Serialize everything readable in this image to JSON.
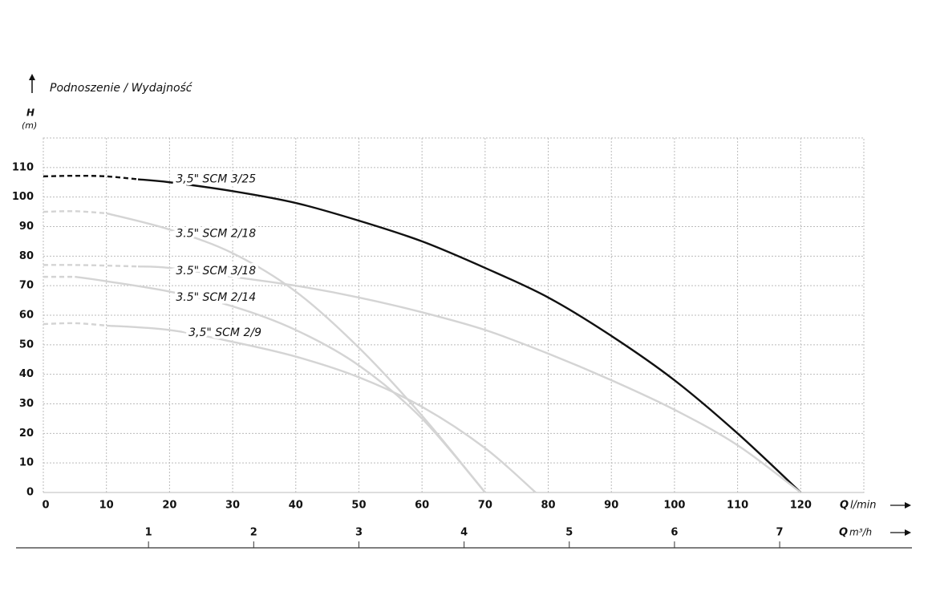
{
  "chart_data": {
    "type": "line",
    "title": "Podnoszenie / Wydajność",
    "ylabel": "H",
    "yunit": "(m)",
    "xlabel": {
      "symbol": "Q",
      "unit": "l/min"
    },
    "x2label": {
      "symbol": "Q",
      "unit": "m³/h"
    },
    "xlim": [
      0,
      130
    ],
    "xticks": [
      0,
      10,
      20,
      30,
      40,
      50,
      60,
      70,
      80,
      90,
      100,
      110,
      120
    ],
    "ylim": [
      0,
      120
    ],
    "yticks": [
      0,
      10,
      20,
      30,
      40,
      50,
      60,
      70,
      80,
      90,
      100,
      110
    ],
    "x2lim": [
      0,
      7.8
    ],
    "x2ticks": [
      1,
      2,
      3,
      4,
      5,
      6,
      7
    ],
    "grid": true,
    "series": [
      {
        "name": "3,5\" SCM 3/25",
        "color": "#111111",
        "dash_end": 15,
        "x": [
          0,
          5,
          10,
          15,
          20,
          30,
          40,
          50,
          60,
          70,
          80,
          90,
          100,
          110,
          120
        ],
        "values": [
          107,
          107.2,
          107,
          106,
          105,
          102,
          98,
          92,
          85,
          76,
          66,
          53,
          38,
          20,
          0
        ]
      },
      {
        "name": "3.5\" SCM 2/18",
        "color": "#d4d4d4",
        "dash_end": 10,
        "x": [
          0,
          5,
          10,
          20,
          30,
          40,
          50,
          60,
          70
        ],
        "values": [
          95,
          95.2,
          94.5,
          89,
          81,
          68,
          49,
          26,
          0
        ]
      },
      {
        "name": "3.5\" SCM 3/18",
        "color": "#d4d4d4",
        "dash_end": 15,
        "x": [
          0,
          5,
          10,
          15,
          20,
          30,
          40,
          50,
          60,
          70,
          80,
          90,
          100,
          110,
          120
        ],
        "values": [
          77,
          77,
          76.8,
          76.5,
          76,
          73,
          70,
          66,
          61,
          55,
          47,
          38,
          28,
          16,
          0
        ]
      },
      {
        "name": "3.5\" SCM 2/14",
        "color": "#d4d4d4",
        "dash_end": 5,
        "x": [
          0,
          5,
          10,
          20,
          30,
          40,
          50,
          60,
          70
        ],
        "values": [
          73,
          73,
          71.5,
          68,
          63,
          55,
          43,
          25,
          0
        ]
      },
      {
        "name": "3,5\" SCM 2/9",
        "color": "#d4d4d4",
        "dash_end": 10,
        "x": [
          0,
          5,
          10,
          20,
          30,
          40,
          50,
          60,
          70,
          78
        ],
        "values": [
          57,
          57.3,
          56.5,
          55,
          51,
          46,
          39,
          29,
          15,
          0
        ]
      }
    ]
  }
}
